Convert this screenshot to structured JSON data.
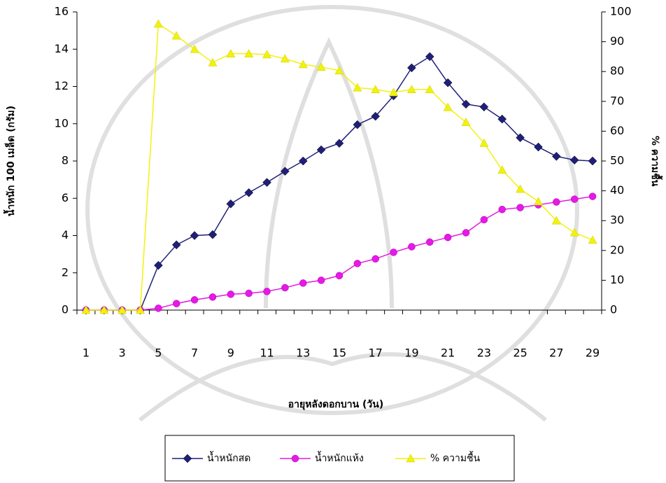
{
  "chart_data": {
    "type": "line",
    "categories": [
      "1",
      null,
      "3",
      null,
      "5",
      null,
      "7",
      null,
      "9",
      null,
      "11",
      null,
      "13",
      null,
      "15",
      null,
      "17",
      null,
      "19",
      null,
      "21",
      null,
      "23",
      null,
      "25",
      null,
      "27",
      null,
      "29"
    ],
    "x_label": "อายุหลังดอกบาน (วัน)",
    "y_label": "น้ำหนัก 100 เมล็ด (กรัม)",
    "y2_label": "% ความชื้น",
    "ylim": [
      0,
      16
    ],
    "yticks": [
      0,
      2,
      4,
      6,
      8,
      10,
      12,
      14,
      16
    ],
    "y2lim": [
      0,
      100
    ],
    "y2ticks": [
      0,
      10,
      20,
      30,
      40,
      50,
      60,
      70,
      80,
      90,
      100
    ],
    "legend": "bottom",
    "series": [
      {
        "name": "น้ำหนักสด",
        "color": "#1f1f7a",
        "marker": "diamond",
        "values": [
          0,
          0,
          0,
          0,
          2.4,
          3.5,
          4.0,
          4.05,
          5.7,
          6.3,
          6.85,
          7.45,
          8.0,
          8.6,
          8.95,
          9.95,
          10.4,
          11.5,
          13.0,
          13.6,
          12.2,
          11.05,
          10.9,
          10.25,
          9.25,
          8.75,
          8.25,
          8.05,
          8.0
        ]
      },
      {
        "name": "น้ำหนักแห้ง",
        "color": "#e619e6",
        "marker": "circle",
        "values": [
          0,
          0,
          0,
          0,
          0.1,
          0.35,
          0.55,
          0.7,
          0.85,
          0.9,
          1.0,
          1.2,
          1.45,
          1.6,
          1.85,
          2.5,
          2.75,
          3.1,
          3.4,
          3.65,
          3.9,
          4.15,
          4.85,
          5.4,
          5.5,
          5.65,
          5.8,
          5.95,
          6.1
        ]
      },
      {
        "name": "% ความชื้น",
        "color": "#f2f20d",
        "marker": "triangle",
        "axis": "y2",
        "values": [
          0,
          0,
          0,
          0,
          96,
          92,
          87.5,
          83,
          86,
          86,
          85.7,
          84.3,
          82.4,
          81.5,
          80.3,
          74.6,
          74,
          73,
          74,
          74,
          68,
          63,
          56,
          47,
          40.6,
          36.4,
          30,
          26,
          23.5
        ]
      }
    ]
  }
}
